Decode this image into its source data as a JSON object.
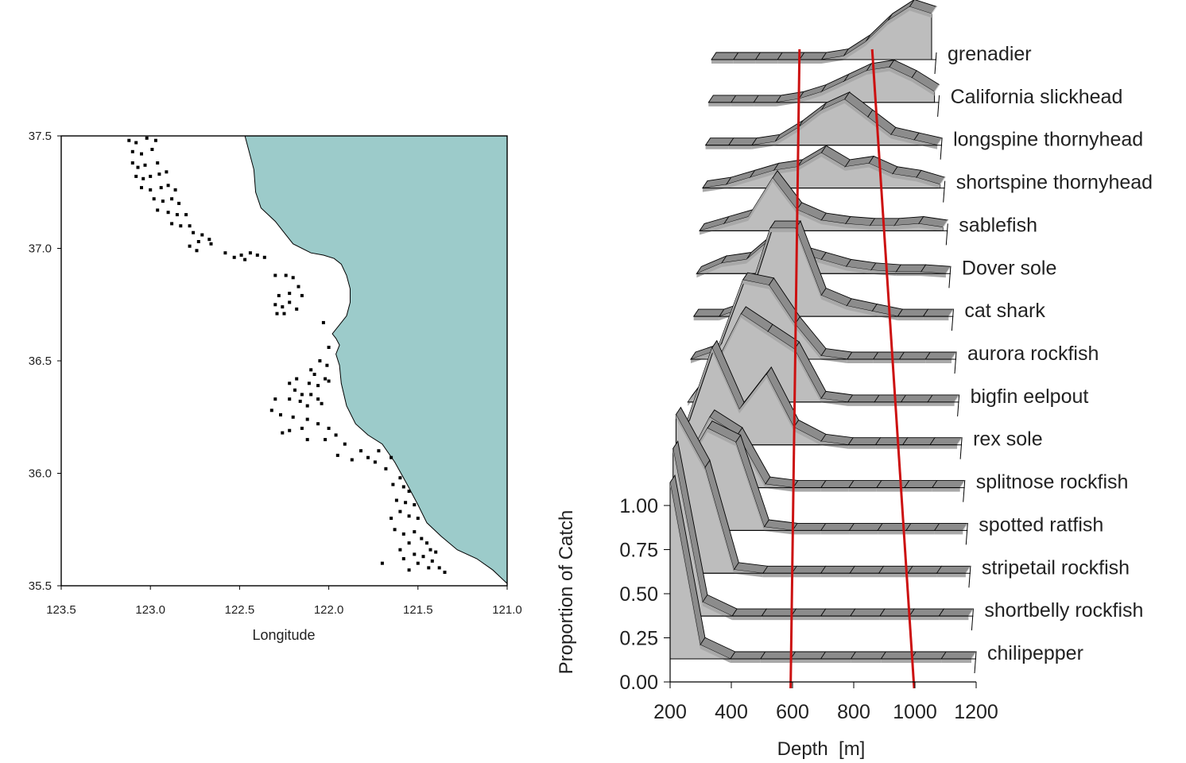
{
  "colors": {
    "land": "#9ccbca",
    "ridge_fill": "#bdbdbd",
    "band": "#8c8c8c",
    "marker": "#e0e0e0",
    "red_line": "#cc1111",
    "dots": "#000000"
  },
  "chart_data": [
    {
      "type": "scatter",
      "title": "",
      "xlabel": "Longitude",
      "ylabel": "",
      "xlim": [
        123.5,
        121.0
      ],
      "ylim": [
        35.5,
        37.5
      ],
      "x_ticks": [
        "123.5",
        "123.0",
        "122.5",
        "122.0",
        "121.5",
        "121.0"
      ],
      "y_ticks": [
        "37.5",
        "37.0",
        "36.5",
        "36.0",
        "35.5"
      ],
      "land_fill": "#9ccbca",
      "coast": [
        [
          122.47,
          37.5
        ],
        [
          122.42,
          37.35
        ],
        [
          122.41,
          37.25
        ],
        [
          122.38,
          37.18
        ],
        [
          122.3,
          37.12
        ],
        [
          122.25,
          37.07
        ],
        [
          122.2,
          37.02
        ],
        [
          122.1,
          36.98
        ],
        [
          122.03,
          36.97
        ],
        [
          121.97,
          36.955
        ],
        [
          121.93,
          36.93
        ],
        [
          121.9,
          36.88
        ],
        [
          121.88,
          36.82
        ],
        [
          121.88,
          36.76
        ],
        [
          121.9,
          36.7
        ],
        [
          121.94,
          36.66
        ],
        [
          121.98,
          36.62
        ],
        [
          121.96,
          36.6
        ],
        [
          121.94,
          36.57
        ],
        [
          121.96,
          36.53
        ],
        [
          121.94,
          36.48
        ],
        [
          121.93,
          36.4
        ],
        [
          121.9,
          36.3
        ],
        [
          121.85,
          36.22
        ],
        [
          121.78,
          36.17
        ],
        [
          121.7,
          36.13
        ],
        [
          121.63,
          36.05
        ],
        [
          121.56,
          35.95
        ],
        [
          121.5,
          35.86
        ],
        [
          121.45,
          35.78
        ],
        [
          121.37,
          35.72
        ],
        [
          121.28,
          35.66
        ],
        [
          121.17,
          35.62
        ],
        [
          121.08,
          35.57
        ],
        [
          121.0,
          35.51
        ]
      ],
      "points": [
        [
          123.12,
          37.48
        ],
        [
          123.08,
          37.47
        ],
        [
          123.02,
          37.49
        ],
        [
          122.97,
          37.48
        ],
        [
          123.1,
          37.43
        ],
        [
          123.05,
          37.42
        ],
        [
          122.99,
          37.44
        ],
        [
          123.1,
          37.38
        ],
        [
          123.07,
          37.36
        ],
        [
          123.03,
          37.37
        ],
        [
          122.96,
          37.38
        ],
        [
          123.08,
          37.32
        ],
        [
          123.04,
          37.31
        ],
        [
          123.0,
          37.32
        ],
        [
          122.95,
          37.33
        ],
        [
          122.91,
          37.34
        ],
        [
          123.05,
          37.27
        ],
        [
          123.0,
          37.26
        ],
        [
          122.94,
          37.27
        ],
        [
          122.9,
          37.28
        ],
        [
          122.86,
          37.26
        ],
        [
          122.98,
          37.22
        ],
        [
          122.93,
          37.21
        ],
        [
          122.88,
          37.22
        ],
        [
          122.84,
          37.2
        ],
        [
          122.96,
          37.17
        ],
        [
          122.9,
          37.16
        ],
        [
          122.85,
          37.15
        ],
        [
          122.8,
          37.15
        ],
        [
          122.88,
          37.11
        ],
        [
          122.83,
          37.1
        ],
        [
          122.78,
          37.1
        ],
        [
          122.76,
          37.07
        ],
        [
          122.71,
          37.06
        ],
        [
          122.67,
          37.04
        ],
        [
          122.66,
          37.02
        ],
        [
          122.73,
          37.03
        ],
        [
          122.78,
          37.01
        ],
        [
          122.74,
          36.99
        ],
        [
          122.58,
          36.98
        ],
        [
          122.53,
          36.96
        ],
        [
          122.49,
          36.97
        ],
        [
          122.44,
          36.98
        ],
        [
          122.4,
          36.97
        ],
        [
          122.36,
          36.96
        ],
        [
          122.47,
          36.95
        ],
        [
          122.3,
          36.88
        ],
        [
          122.24,
          36.88
        ],
        [
          122.2,
          36.87
        ],
        [
          122.17,
          36.83
        ],
        [
          122.22,
          36.8
        ],
        [
          122.28,
          36.79
        ],
        [
          122.3,
          36.75
        ],
        [
          122.26,
          36.74
        ],
        [
          122.22,
          36.76
        ],
        [
          122.18,
          36.73
        ],
        [
          122.25,
          36.71
        ],
        [
          122.29,
          36.71
        ],
        [
          122.15,
          36.79
        ],
        [
          122.03,
          36.67
        ],
        [
          122.0,
          36.56
        ],
        [
          122.05,
          36.5
        ],
        [
          122.01,
          36.48
        ],
        [
          122.1,
          36.46
        ],
        [
          122.02,
          36.42
        ],
        [
          122.08,
          36.44
        ],
        [
          122.11,
          36.4
        ],
        [
          122.06,
          36.39
        ],
        [
          122.0,
          36.41
        ],
        [
          122.18,
          36.42
        ],
        [
          122.22,
          36.4
        ],
        [
          122.19,
          36.37
        ],
        [
          122.15,
          36.35
        ],
        [
          122.22,
          36.33
        ],
        [
          122.16,
          36.32
        ],
        [
          122.1,
          36.35
        ],
        [
          122.06,
          36.33
        ],
        [
          122.12,
          36.3
        ],
        [
          122.04,
          36.31
        ],
        [
          122.3,
          36.33
        ],
        [
          122.32,
          36.28
        ],
        [
          122.27,
          36.26
        ],
        [
          122.2,
          36.25
        ],
        [
          122.12,
          36.24
        ],
        [
          122.06,
          36.22
        ],
        [
          122.0,
          36.2
        ],
        [
          122.15,
          36.2
        ],
        [
          122.22,
          36.19
        ],
        [
          122.26,
          36.18
        ],
        [
          122.12,
          36.15
        ],
        [
          122.02,
          36.15
        ],
        [
          121.96,
          36.17
        ],
        [
          121.91,
          36.13
        ],
        [
          121.95,
          36.08
        ],
        [
          121.87,
          36.06
        ],
        [
          121.82,
          36.1
        ],
        [
          121.78,
          36.07
        ],
        [
          121.74,
          36.05
        ],
        [
          121.72,
          36.1
        ],
        [
          121.65,
          36.07
        ],
        [
          121.68,
          36.02
        ],
        [
          121.6,
          35.98
        ],
        [
          121.64,
          35.95
        ],
        [
          121.58,
          35.94
        ],
        [
          121.55,
          35.92
        ],
        [
          121.62,
          35.88
        ],
        [
          121.57,
          35.87
        ],
        [
          121.52,
          35.86
        ],
        [
          121.6,
          35.83
        ],
        [
          121.55,
          35.81
        ],
        [
          121.5,
          35.8
        ],
        [
          121.65,
          35.8
        ],
        [
          121.63,
          35.75
        ],
        [
          121.58,
          35.73
        ],
        [
          121.52,
          35.74
        ],
        [
          121.48,
          35.71
        ],
        [
          121.45,
          35.69
        ],
        [
          121.55,
          35.69
        ],
        [
          121.6,
          35.66
        ],
        [
          121.52,
          35.64
        ],
        [
          121.47,
          35.63
        ],
        [
          121.42,
          35.61
        ],
        [
          121.38,
          35.58
        ],
        [
          121.35,
          35.56
        ],
        [
          121.44,
          35.58
        ],
        [
          121.5,
          35.6
        ],
        [
          121.58,
          35.62
        ],
        [
          121.55,
          35.57
        ],
        [
          121.7,
          35.6
        ],
        [
          121.4,
          35.65
        ],
        [
          121.43,
          35.66
        ]
      ]
    },
    {
      "type": "area",
      "title": "",
      "xlabel": "Depth  [m]",
      "ylabel": "Proportion of Catch",
      "xlim": [
        200,
        1200
      ],
      "ylim": [
        0,
        1
      ],
      "x_ticks": [
        "200",
        "400",
        "600",
        "800",
        "1000",
        "1200"
      ],
      "y_ticks": [
        "0.00",
        "0.25",
        "0.50",
        "0.75",
        "1.00"
      ],
      "depths": [
        200,
        300,
        400,
        500,
        600,
        700,
        800,
        900,
        1000,
        1100,
        1200
      ],
      "reference_lines": [
        [
          600,
          600
        ],
        [
          930,
          1010
        ]
      ],
      "series": [
        {
          "name": "chilipepper",
          "values": [
            1.0,
            0.08,
            0,
            0,
            0,
            0,
            0,
            0,
            0,
            0,
            0
          ]
        },
        {
          "name": "shortbelly rockfish",
          "values": [
            0.95,
            0.08,
            0,
            0,
            0,
            0,
            0,
            0,
            0,
            0,
            0
          ]
        },
        {
          "name": "stripetail rockfish",
          "values": [
            0.9,
            0.6,
            0.02,
            0,
            0,
            0,
            0,
            0,
            0,
            0,
            0
          ]
        },
        {
          "name": "spotted ratfish",
          "values": [
            0.3,
            0.58,
            0.5,
            0.02,
            0,
            0,
            0,
            0,
            0,
            0,
            0
          ]
        },
        {
          "name": "splitnose rockfish",
          "values": [
            0.1,
            0.4,
            0.3,
            0.02,
            0,
            0,
            0,
            0,
            0,
            0,
            0
          ]
        },
        {
          "name": "rex sole",
          "values": [
            0.1,
            0.55,
            0.2,
            0.4,
            0.1,
            0.02,
            0,
            0,
            0,
            0,
            0
          ]
        },
        {
          "name": "bigfin eelpout",
          "values": [
            0,
            0.2,
            0.5,
            0.4,
            0.3,
            0.02,
            0,
            0,
            0,
            0,
            0
          ]
        },
        {
          "name": "aurora rockfish",
          "values": [
            0,
            0.05,
            0.45,
            0.42,
            0.2,
            0.02,
            0,
            0,
            0,
            0,
            0
          ]
        },
        {
          "name": "cat shark",
          "values": [
            0,
            0,
            0.05,
            0.5,
            0.5,
            0.12,
            0.06,
            0.03,
            0,
            0,
            0
          ]
        },
        {
          "name": "Dover sole",
          "values": [
            0,
            0.06,
            0.08,
            0.2,
            0.12,
            0.08,
            0.04,
            0.02,
            0.01,
            0.01,
            0
          ]
        },
        {
          "name": "sablefish",
          "values": [
            0,
            0.04,
            0.08,
            0.3,
            0.12,
            0.06,
            0.04,
            0.03,
            0.03,
            0.04,
            0.02
          ]
        },
        {
          "name": "shortspine thornyhead",
          "values": [
            0,
            0.02,
            0.06,
            0.1,
            0.12,
            0.2,
            0.12,
            0.14,
            0.08,
            0.06,
            0.02
          ]
        },
        {
          "name": "longspine thornyhead",
          "values": [
            0,
            0,
            0,
            0.02,
            0.1,
            0.2,
            0.26,
            0.16,
            0.06,
            0.03,
            0
          ]
        },
        {
          "name": "California slickhead",
          "values": [
            0,
            0,
            0,
            0,
            0.02,
            0.06,
            0.12,
            0.18,
            0.2,
            0.14,
            0.06
          ]
        },
        {
          "name": "grenadier",
          "values": [
            0,
            0,
            0,
            0,
            0,
            0,
            0.02,
            0.1,
            0.22,
            0.3,
            0.26
          ]
        }
      ]
    }
  ]
}
